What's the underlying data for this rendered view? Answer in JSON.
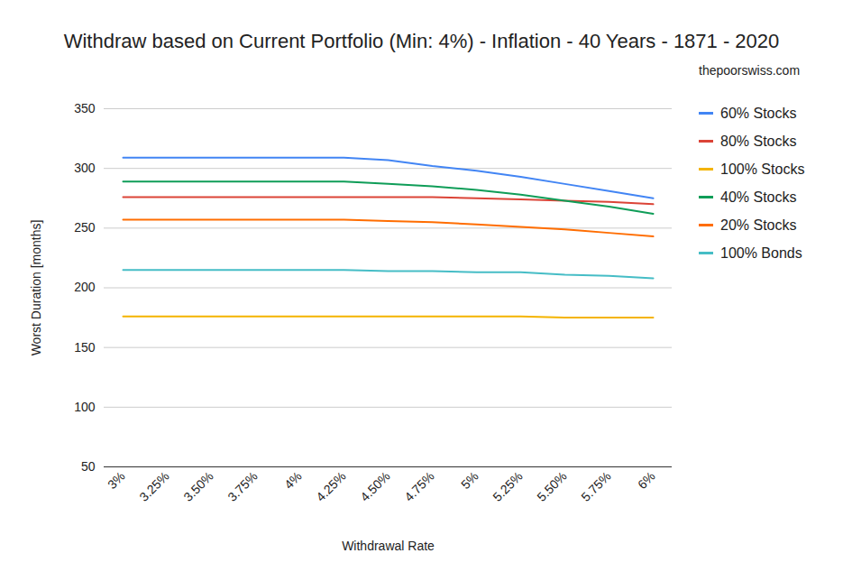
{
  "chart_data": {
    "type": "line",
    "title": "Withdraw based on Current Portfolio (Min: 4%) - Inflation - 40 Years - 1871 - 2020",
    "subtitle": "thepoorswiss.com",
    "x_label": "Withdrawal Rate",
    "y_label": "Worst Duration [months]",
    "categories": [
      "3%",
      "3.25%",
      "3.50%",
      "3.75%",
      "4%",
      "4.25%",
      "4.50%",
      "4.75%",
      "5%",
      "5.25%",
      "5.50%",
      "5.75%",
      "6%"
    ],
    "series": [
      {
        "name": "60% Stocks",
        "color": "#4285f4",
        "values": [
          309,
          309,
          309,
          309,
          309,
          309,
          307,
          302,
          298,
          293,
          287,
          281,
          275
        ]
      },
      {
        "name": "80% Stocks",
        "color": "#db4437",
        "values": [
          276,
          276,
          276,
          276,
          276,
          276,
          276,
          276,
          275,
          274,
          273,
          272,
          270
        ]
      },
      {
        "name": "100% Stocks",
        "color": "#f4b400",
        "values": [
          176,
          176,
          176,
          176,
          176,
          176,
          176,
          176,
          176,
          176,
          175,
          175,
          175
        ]
      },
      {
        "name": "40% Stocks",
        "color": "#0f9d58",
        "values": [
          289,
          289,
          289,
          289,
          289,
          289,
          287,
          285,
          282,
          278,
          273,
          268,
          262
        ]
      },
      {
        "name": "20% Stocks",
        "color": "#ff6d01",
        "values": [
          257,
          257,
          257,
          257,
          257,
          257,
          256,
          255,
          253,
          251,
          249,
          246,
          243
        ]
      },
      {
        "name": "100% Bonds",
        "color": "#46bdc6",
        "values": [
          215,
          215,
          215,
          215,
          215,
          215,
          214,
          214,
          213,
          213,
          211,
          210,
          208
        ]
      }
    ],
    "ylim": [
      50,
      350
    ],
    "yticks": [
      50,
      100,
      150,
      200,
      250,
      300,
      350
    ],
    "grid": true,
    "legend": "right"
  }
}
